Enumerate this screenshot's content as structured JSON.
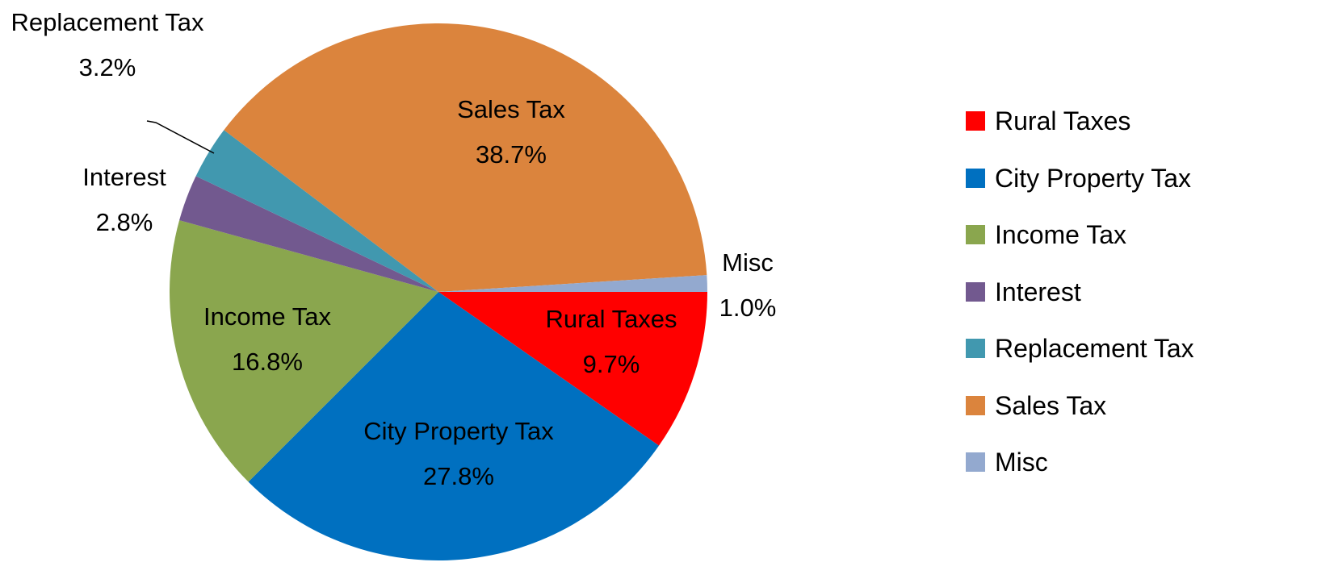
{
  "chart_data": {
    "type": "pie",
    "categories": [
      "Rural Taxes",
      "City Property Tax",
      "Income Tax",
      "Interest",
      "Replacement Tax",
      "Sales Tax",
      "Misc"
    ],
    "values": [
      9.7,
      27.8,
      16.8,
      2.8,
      3.2,
      38.7,
      1.0
    ],
    "value_labels": [
      "9.7%",
      "27.8%",
      "16.8%",
      "2.8%",
      "3.2%",
      "38.7%",
      "1.0%"
    ],
    "colors": [
      "#ff0000",
      "#0070c0",
      "#8aa64e",
      "#72598f",
      "#4198af",
      "#db843d",
      "#93a9cf"
    ],
    "legend": "right"
  }
}
